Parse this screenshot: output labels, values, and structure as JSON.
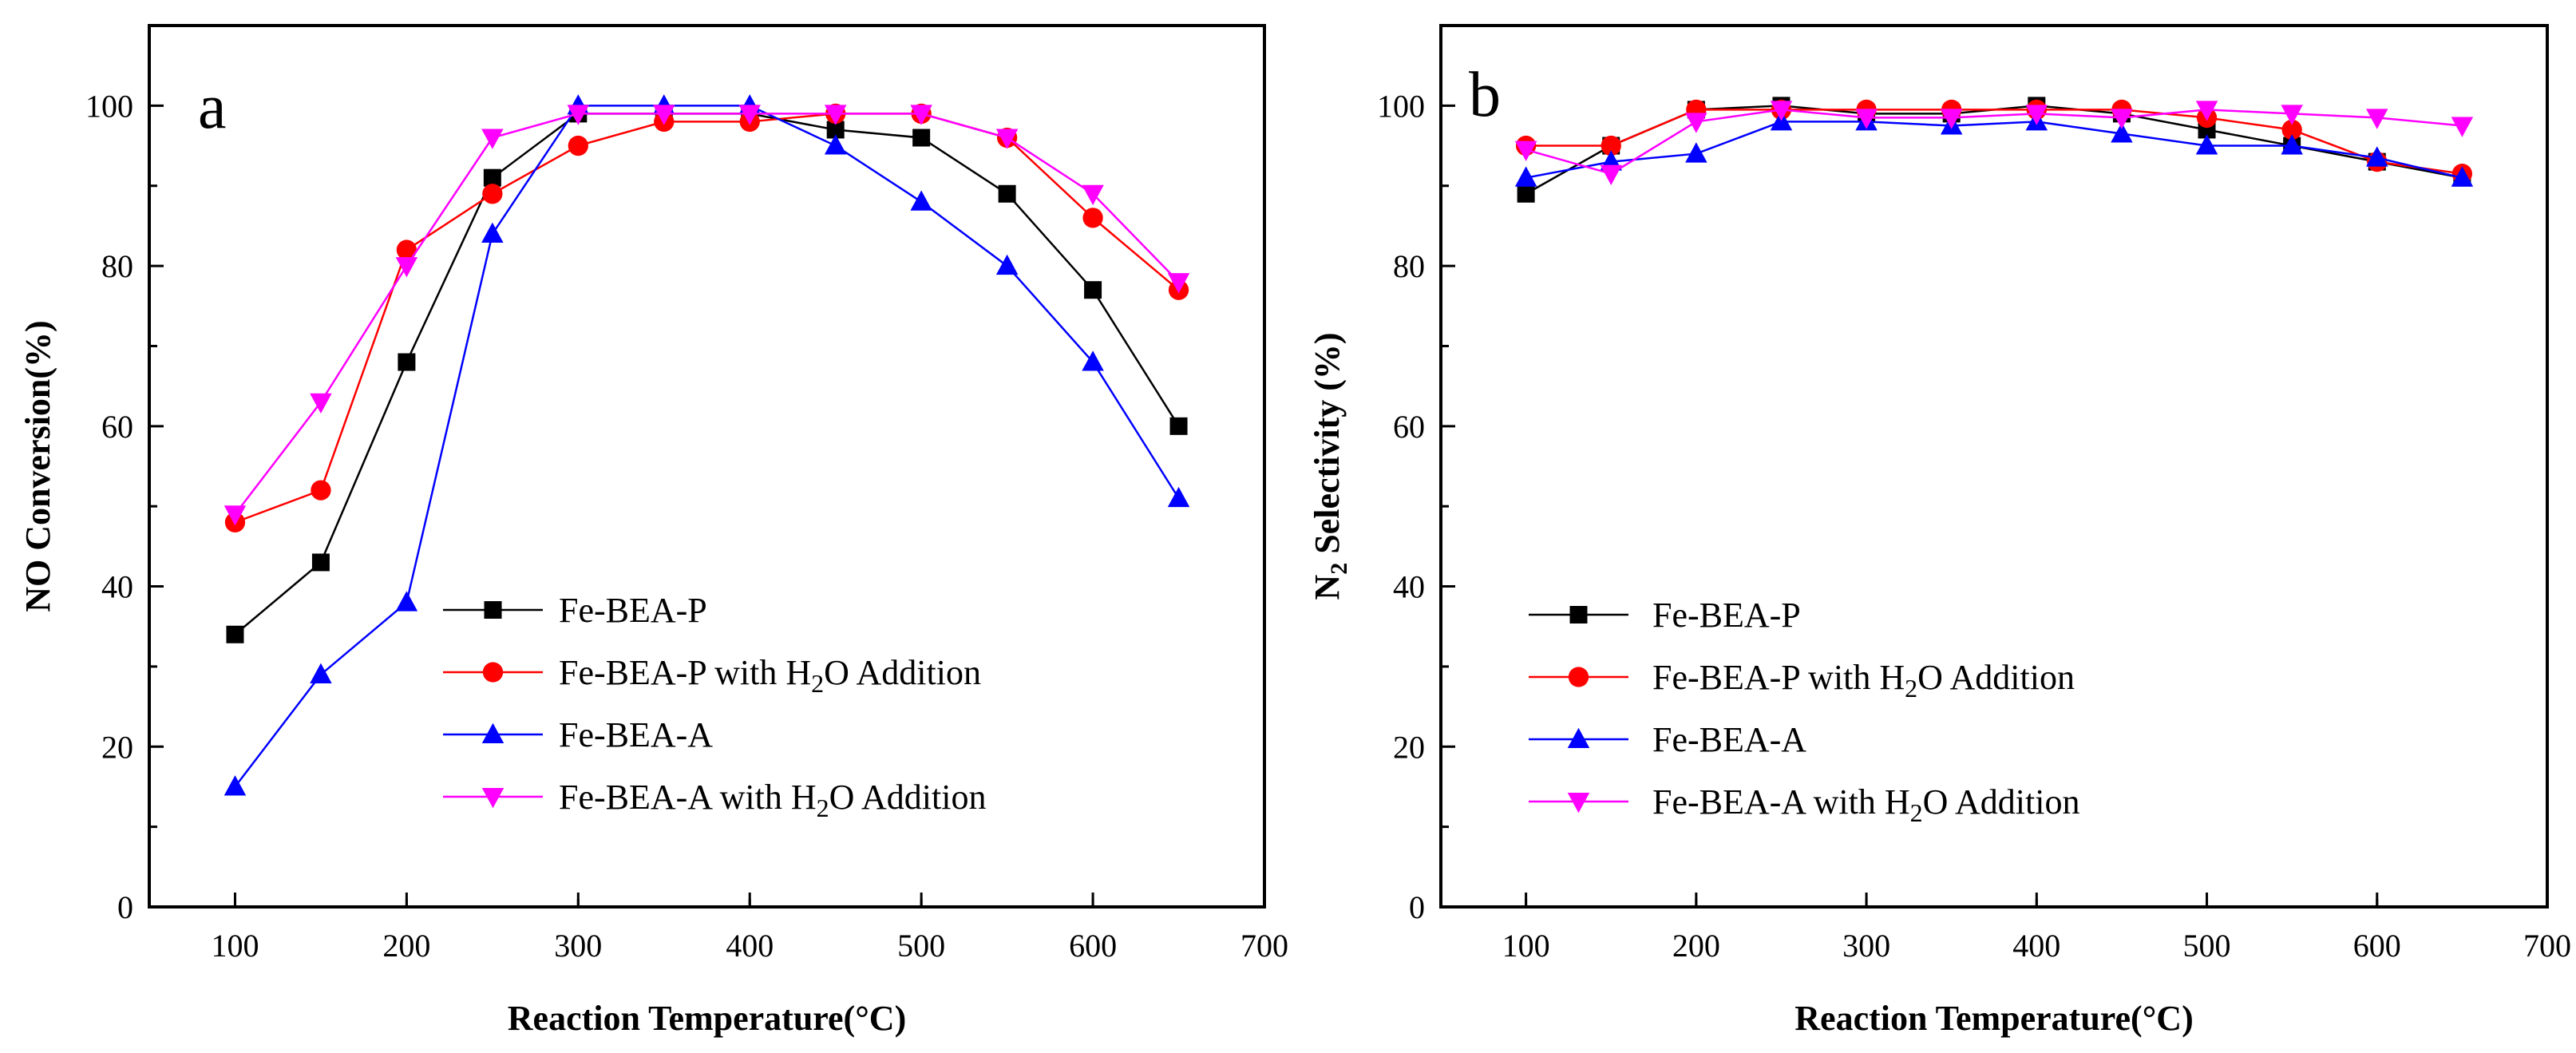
{
  "figure": {
    "description_note": "",
    "colors": {
      "black": "#000000",
      "red": "#ff0000",
      "blue": "#0000ff",
      "magenta": "#ff00ff"
    }
  },
  "chart_data": [
    {
      "type": "line",
      "panel": "a",
      "xlabel": "Reaction Temperature(°C)",
      "ylabel": "NO Conversion(%)",
      "xlim": [
        50,
        700
      ],
      "ylim": [
        0,
        110
      ],
      "xticks": [
        100,
        200,
        300,
        400,
        500,
        600,
        700
      ],
      "yticks": [
        0,
        20,
        40,
        60,
        80,
        100
      ],
      "x": [
        100,
        150,
        200,
        250,
        300,
        350,
        400,
        450,
        500,
        550,
        600,
        650
      ],
      "series": [
        {
          "name": "Fe-BEA-P",
          "marker": "square",
          "color": "#000000",
          "values": [
            34,
            43,
            68,
            91,
            99,
            99,
            99,
            97,
            96,
            89,
            77,
            60
          ]
        },
        {
          "name": "Fe-BEA-P with H2O Addition",
          "marker": "circle",
          "color": "#ff0000",
          "values": [
            48,
            52,
            82,
            89,
            95,
            98,
            98,
            99,
            99,
            96,
            86,
            77
          ]
        },
        {
          "name": "Fe-BEA-A",
          "marker": "triangle-up",
          "color": "#0000ff",
          "values": [
            15,
            29,
            38,
            84,
            100,
            100,
            100,
            95,
            88,
            80,
            68,
            51
          ]
        },
        {
          "name": "Fe-BEA-A with H2O Addition",
          "marker": "triangle-down",
          "color": "#ff00ff",
          "values": [
            49,
            63,
            80,
            96,
            99,
            99,
            99,
            99,
            99,
            96,
            89,
            78
          ]
        }
      ],
      "legend": {
        "placement": "lower-left",
        "entries": [
          {
            "pre": "Fe-BEA-P",
            "sub": "",
            "post": ""
          },
          {
            "pre": "Fe-BEA-P with H",
            "sub": "2",
            "post": "O Addition"
          },
          {
            "pre": "Fe-BEA-A",
            "sub": "",
            "post": ""
          },
          {
            "pre": "Fe-BEA-A with H",
            "sub": "2",
            "post": "O Addition"
          }
        ]
      }
    },
    {
      "type": "line",
      "panel": "b",
      "xlabel": "Reaction Temperature(°C)",
      "ylabel_pre": "N",
      "ylabel_sub": "2",
      "ylabel_post": " Selectivity (%)",
      "xlim": [
        50,
        700
      ],
      "ylim": [
        0,
        110
      ],
      "xticks": [
        100,
        200,
        300,
        400,
        500,
        600,
        700
      ],
      "yticks": [
        0,
        20,
        40,
        60,
        80,
        100
      ],
      "x": [
        100,
        150,
        200,
        250,
        300,
        350,
        400,
        450,
        500,
        550,
        600,
        650
      ],
      "series": [
        {
          "name": "Fe-BEA-P",
          "marker": "square",
          "color": "#000000",
          "values": [
            89,
            95,
            99.5,
            100,
            99,
            99,
            100,
            99,
            97,
            95,
            93,
            91
          ]
        },
        {
          "name": "Fe-BEA-P with H2O Addition",
          "marker": "circle",
          "color": "#ff0000",
          "values": [
            95,
            95,
            99.5,
            99.5,
            99.5,
            99.5,
            99.5,
            99.5,
            98.5,
            97,
            93,
            91.5
          ]
        },
        {
          "name": "Fe-BEA-A",
          "marker": "triangle-up",
          "color": "#0000ff",
          "values": [
            91,
            93,
            94,
            98,
            98,
            97.5,
            98,
            96.5,
            95,
            95,
            93.5,
            91
          ]
        },
        {
          "name": "Fe-BEA-A with H2O Addition",
          "marker": "triangle-down",
          "color": "#ff00ff",
          "values": [
            94.5,
            91.5,
            98,
            99.5,
            98.5,
            98.5,
            99,
            98.5,
            99.5,
            99,
            98.5,
            97.5
          ]
        }
      ],
      "legend": {
        "placement": "lower-left",
        "entries": [
          {
            "pre": "Fe-BEA-P",
            "sub": "",
            "post": ""
          },
          {
            "pre": "Fe-BEA-P with H",
            "sub": "2",
            "post": "O Addition"
          },
          {
            "pre": "Fe-BEA-A",
            "sub": "",
            "post": ""
          },
          {
            "pre": "Fe-BEA-A with H",
            "sub": "2",
            "post": "O Addition"
          }
        ]
      }
    }
  ]
}
